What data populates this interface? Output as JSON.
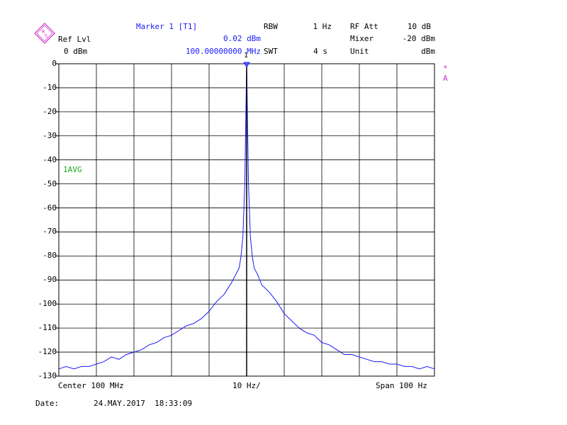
{
  "header": {
    "marker_title": "Marker 1 [T1]",
    "marker_level": "0.02 dBm",
    "marker_freq": "100.00000000 MHz",
    "ref_lvl_label": "Ref Lvl",
    "ref_lvl_value": "0 dBm",
    "rbw_label": "RBW",
    "rbw_value": "1 Hz",
    "swt_label": "SWT",
    "swt_value": "4 s",
    "rf_att_label": "RF Att",
    "rf_att_value": "10 dB",
    "mixer_label": "Mixer",
    "mixer_value": "-20 dBm",
    "unit_label": "Unit",
    "unit_value": "dBm",
    "marker_number": "1",
    "trace_mode": "1AVG",
    "star_flag": "*",
    "a_flag": "A"
  },
  "footer": {
    "center": "Center 100 MHz",
    "div": "10 Hz/",
    "span": "Span 100 Hz",
    "date_label": "Date:",
    "date_value": "24.MAY.2017  18:33:09"
  },
  "colors": {
    "trace": "#1a1aff",
    "grid": "#000000",
    "label_blue": "#1a1aff",
    "logo": "#cc33cc",
    "avg_label": "#22aa22"
  },
  "chart_data": {
    "type": "line",
    "xlabel": "",
    "ylabel": "",
    "xlim": [
      -50,
      50
    ],
    "ylim": [
      -130,
      0
    ],
    "x_unit": "Hz offset from center",
    "y_unit": "dBm",
    "y_ticks": [
      "0",
      "-10",
      "-20",
      "-30",
      "-40",
      "-50",
      "-60",
      "-70",
      "-80",
      "-90",
      "-100",
      "-110",
      "-120",
      "-130"
    ],
    "grid": true,
    "series": [
      {
        "values_x": [
          -50,
          -48,
          -46,
          -44,
          -42,
          -40,
          -38,
          -36,
          -34,
          -32,
          -30,
          -28,
          -26,
          -24,
          -22,
          -20,
          -18,
          -16,
          -14,
          -12,
          -10,
          -8,
          -6,
          -4,
          -3,
          -2,
          -1.5,
          -1,
          -0.5,
          0,
          0.5,
          1,
          1.5,
          2,
          3,
          4,
          6,
          8,
          10,
          12,
          14,
          16,
          18,
          20,
          22,
          24,
          26,
          28,
          30,
          32,
          34,
          36,
          38,
          40,
          42,
          44,
          46,
          48,
          50
        ],
        "values_y": [
          -127,
          -126,
          -127,
          -126,
          -126,
          -125,
          -124,
          -122,
          -123,
          -121,
          -120,
          -119,
          -117,
          -116,
          -114,
          -113,
          -111,
          -109,
          -108,
          -106,
          -103,
          -99,
          -96,
          -91,
          -88,
          -85,
          -80,
          -72,
          -50,
          0,
          -50,
          -72,
          -80,
          -85,
          -88,
          -92,
          -95,
          -99,
          -104,
          -107,
          -110,
          -112,
          -113,
          -116,
          -117,
          -119,
          -121,
          -121,
          -122,
          -123,
          -124,
          -124,
          -125,
          -125,
          -126,
          -126,
          -127,
          -126,
          -127
        ]
      }
    ],
    "marker": {
      "x": 0,
      "y": 0.02,
      "label": "1"
    }
  }
}
